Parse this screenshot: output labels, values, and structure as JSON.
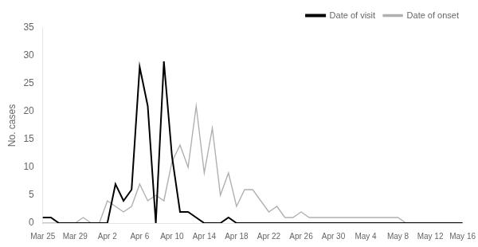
{
  "chart_data": {
    "type": "line",
    "ylabel": "No. cases",
    "categories": [
      "Mar 25",
      null,
      null,
      null,
      "Mar 29",
      null,
      null,
      null,
      "Apr 2",
      null,
      null,
      null,
      "Apr 6",
      null,
      null,
      null,
      "Apr 10",
      null,
      null,
      null,
      "Apr 14",
      null,
      null,
      null,
      "Apr 18",
      null,
      null,
      null,
      "Apr 22",
      null,
      null,
      null,
      "Apr 26",
      null,
      null,
      null,
      "Apr 30",
      null,
      null,
      null,
      "May 4",
      null,
      null,
      null,
      "May 8",
      null,
      null,
      null,
      "May 12",
      null,
      null,
      null,
      "May 16"
    ],
    "series": [
      {
        "name": "Date of visit",
        "color": "#000000",
        "marker": "none",
        "line_style": "solid",
        "values": [
          1,
          1,
          0,
          0,
          0,
          0,
          0,
          0,
          0,
          7,
          4,
          6,
          28,
          21,
          0,
          29,
          12,
          2,
          2,
          1,
          0,
          0,
          0,
          1,
          0,
          0,
          0,
          0,
          0,
          0,
          0,
          0,
          0,
          0,
          0,
          0,
          0,
          0,
          0,
          0,
          0,
          0,
          0,
          0,
          0,
          0,
          0,
          0,
          0,
          0,
          0,
          0,
          0
        ]
      },
      {
        "name": "Date of onset",
        "color": "#b0b0b0",
        "marker": "none",
        "line_style": "solid",
        "values": [
          0,
          0,
          0,
          0,
          0,
          1,
          0,
          0,
          4,
          3,
          2,
          3,
          7,
          4,
          5,
          4,
          11,
          14,
          10,
          21,
          9,
          17,
          5,
          9,
          3,
          6,
          6,
          4,
          2,
          3,
          1,
          1,
          2,
          1,
          1,
          1,
          1,
          1,
          1,
          1,
          1,
          1,
          1,
          1,
          1,
          0,
          0,
          0,
          0,
          0,
          0,
          0,
          0
        ]
      }
    ],
    "ylim": [
      0,
      35
    ],
    "yticks": [
      0,
      5,
      10,
      15,
      20,
      25,
      30,
      35
    ],
    "grid": false,
    "legend": "upper right"
  }
}
